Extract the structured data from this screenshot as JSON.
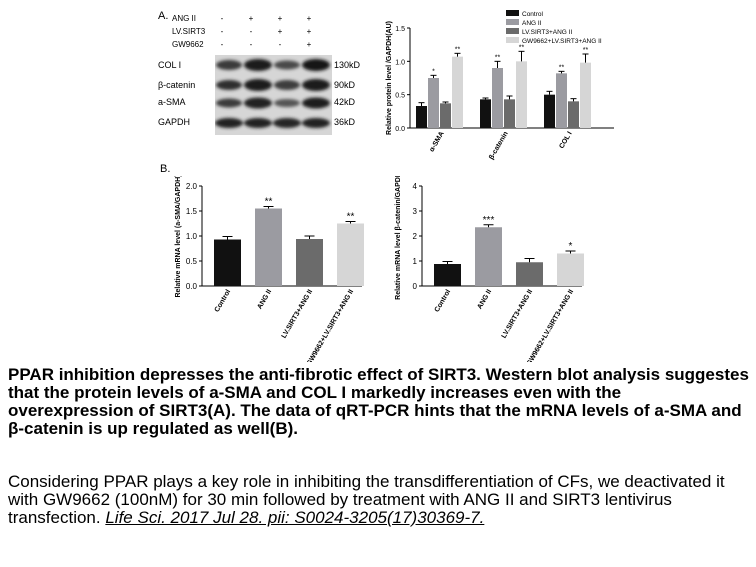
{
  "panel_a": {
    "letter": "A.",
    "treatments": [
      {
        "label": "ANG II",
        "signs": [
          "-",
          "+",
          "+",
          "+"
        ]
      },
      {
        "label": "LV.SIRT3",
        "signs": [
          "-",
          "-",
          "+",
          "+"
        ]
      },
      {
        "label": "GW9662",
        "signs": [
          "-",
          "-",
          "-",
          "+"
        ]
      }
    ],
    "bands": [
      {
        "label": "COL I",
        "kd": "130kD"
      },
      {
        "label": "β-catenin",
        "kd": "90kD"
      },
      {
        "label": "a-SMA",
        "kd": "42kD"
      },
      {
        "label": "GAPDH",
        "kd": "36kD"
      }
    ]
  },
  "panel_b": {
    "letter": "B."
  },
  "colors": {
    "control": "#111111",
    "ang2": "#9b9ba1",
    "lv": "#6b6b6b",
    "gw": "#d6d6d6"
  },
  "chart_data": [
    {
      "type": "bar",
      "ylabel": "Relative protein level /GAPDH(AU)",
      "categories": [
        "α-SMA",
        "β-catenin",
        "COL I"
      ],
      "ylim": [
        0,
        1.5
      ],
      "yticks": [
        "0.0",
        "0.5",
        "1.0",
        "1.5"
      ],
      "legend_position": "top",
      "series": [
        {
          "name": "Control",
          "values": [
            0.33,
            0.43,
            0.5
          ],
          "errors": [
            0.05,
            0.02,
            0.05
          ],
          "sig": [
            "",
            "",
            ""
          ]
        },
        {
          "name": "ANG II",
          "values": [
            0.75,
            0.9,
            0.82
          ],
          "errors": [
            0.04,
            0.1,
            0.03
          ],
          "sig": [
            "*",
            "**",
            "**"
          ]
        },
        {
          "name": "LV.SIRT3+ANG II",
          "values": [
            0.37,
            0.43,
            0.4
          ],
          "errors": [
            0.02,
            0.05,
            0.04
          ],
          "sig": [
            "",
            "",
            ""
          ]
        },
        {
          "name": "GW9662+LV.SIRT3+ANG II",
          "values": [
            1.07,
            1.0,
            0.98
          ],
          "errors": [
            0.05,
            0.15,
            0.13
          ],
          "sig": [
            "**",
            "**",
            "**"
          ]
        }
      ]
    },
    {
      "type": "bar",
      "ylabel": "Relative mRNA level (a-SMA/GAPDH)",
      "categories": [
        "Control",
        "ANG II",
        "LV.SIRT3+ANG II",
        "GW9662+LV.SIRT3+ANG II"
      ],
      "ylim": [
        0,
        2.0
      ],
      "yticks": [
        "0.0",
        "0.5",
        "1.0",
        "1.5",
        "2.0"
      ],
      "values": [
        0.93,
        1.55,
        0.94,
        1.25
      ],
      "errors": [
        0.06,
        0.04,
        0.06,
        0.04
      ],
      "sig": [
        "",
        "**",
        "",
        "**"
      ]
    },
    {
      "type": "bar",
      "ylabel": "Relative mRNA level β-catenin/GAPDH",
      "categories": [
        "Control",
        "ANG II",
        "LV.SIRT3+ANG II",
        "GW9662+LV.SIRT3+ANG II"
      ],
      "ylim": [
        0,
        4
      ],
      "yticks": [
        "0",
        "1",
        "2",
        "3",
        "4"
      ],
      "values": [
        0.88,
        2.35,
        0.95,
        1.3
      ],
      "errors": [
        0.1,
        0.1,
        0.15,
        0.1
      ],
      "sig": [
        "",
        "***",
        "",
        "*"
      ]
    }
  ],
  "caption": {
    "bold": "PPAR inhibition depresses the anti-fibrotic effect of SIRT3. Western blot analysis suggestes that the protein levels of a-SMA and COL I markedly increases even with the overexpression of SIRT3(A). The data of qRT-PCR hints that the mRNA levels of a-SMA and β-catenin is up regulated as well(B).",
    "normal": "Considering PPAR plays a key role in inhibiting the transdifferentiation of CFs, we deactivated it with GW9662 (100nM) for 30 min followed by treatment with ANG II and SIRT3 lentivirus transfection.",
    "citation": "Life Sci. 2017 Jul 28. pii: S0024-3205(17)30369-7."
  }
}
